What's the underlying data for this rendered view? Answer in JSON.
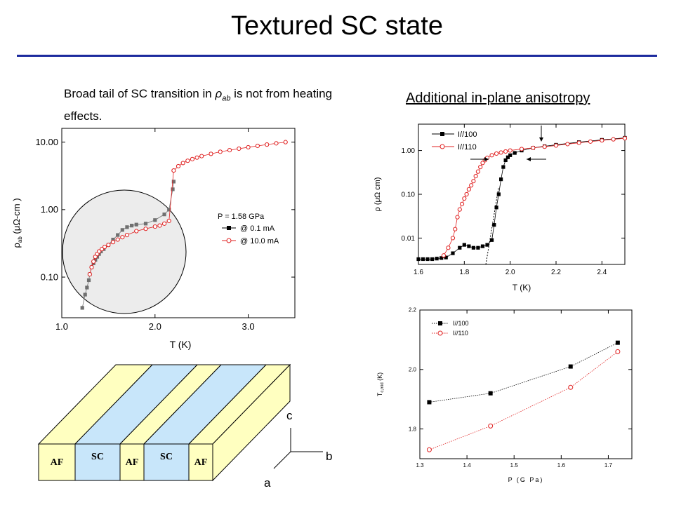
{
  "slide": {
    "title": "Textured SC state",
    "caption_main": "Broad tail of SC transition in ",
    "caption_rho": "ρ",
    "caption_sub": "ab",
    "caption_rest": " is not from heating effects.",
    "subtitle": "Additional in-plane anisotropy"
  },
  "colors": {
    "rule": "#1c2a9e",
    "af": "#ffffc0",
    "sc": "#c8e6fa",
    "red": "#e02020",
    "grey": "#707070"
  },
  "chart_data": [
    {
      "type": "scatter",
      "id": "left",
      "xlabel": "T (K)",
      "ylabel_main": "ρ",
      "ylabel_sub": "ab",
      "ylabel_unit": " (μΩ-cm )",
      "yscale": "log",
      "xlim": [
        1.0,
        3.5
      ],
      "ylim": [
        0.025,
        16
      ],
      "xticks": [
        {
          "v": 1.0,
          "label": "1.0"
        },
        {
          "v": 2.0,
          "label": "2.0"
        },
        {
          "v": 3.0,
          "label": "3.0"
        }
      ],
      "yticks": [
        {
          "v": 0.1,
          "label": "0.10"
        },
        {
          "v": 1,
          "label": "1.00"
        },
        {
          "v": 10,
          "label": "10.00"
        }
      ],
      "legend_title": "P = 1.58 GPa",
      "legend": [
        "@ 0.1 mA",
        "@ 10.0 mA"
      ],
      "series": [
        {
          "name": "@ 0.1 mA",
          "marker": "square",
          "x": [
            1.22,
            1.25,
            1.27,
            1.29,
            1.3,
            1.32,
            1.34,
            1.36,
            1.38,
            1.4,
            1.42,
            1.45,
            1.5,
            1.55,
            1.6,
            1.65,
            1.7,
            1.75,
            1.8,
            1.9,
            2.0,
            2.1,
            2.15,
            2.19,
            2.2
          ],
          "y": [
            0.035,
            0.055,
            0.07,
            0.09,
            0.11,
            0.14,
            0.16,
            0.18,
            0.2,
            0.22,
            0.24,
            0.26,
            0.3,
            0.36,
            0.42,
            0.5,
            0.55,
            0.58,
            0.6,
            0.62,
            0.7,
            0.85,
            1.0,
            2.0,
            2.6
          ]
        },
        {
          "name": "@ 10.0 mA",
          "marker": "circle",
          "x": [
            1.3,
            1.32,
            1.34,
            1.36,
            1.38,
            1.4,
            1.43,
            1.46,
            1.5,
            1.55,
            1.6,
            1.65,
            1.7,
            1.8,
            1.9,
            2.0,
            2.05,
            2.1,
            2.15,
            2.2,
            2.25,
            2.3,
            2.35,
            2.4,
            2.45,
            2.5,
            2.6,
            2.7,
            2.8,
            2.9,
            3.0,
            3.1,
            3.2,
            3.3,
            3.4
          ],
          "y": [
            0.11,
            0.14,
            0.17,
            0.2,
            0.22,
            0.24,
            0.26,
            0.28,
            0.3,
            0.33,
            0.36,
            0.39,
            0.42,
            0.48,
            0.52,
            0.56,
            0.58,
            0.62,
            0.68,
            3.8,
            4.4,
            4.9,
            5.3,
            5.6,
            5.9,
            6.2,
            6.7,
            7.2,
            7.6,
            8.0,
            8.4,
            8.8,
            9.2,
            9.6,
            10.0
          ]
        }
      ]
    },
    {
      "type": "scatter",
      "id": "topright",
      "xlabel": "T (K)",
      "ylabel": "ρ (μΩ cm)",
      "yscale": "log",
      "xlim": [
        1.6,
        2.5
      ],
      "ylim": [
        0.0025,
        4.0
      ],
      "xticks": [
        {
          "v": 1.6,
          "label": "1.6"
        },
        {
          "v": 1.8,
          "label": "1.8"
        },
        {
          "v": 2.0,
          "label": "2.0"
        },
        {
          "v": 2.2,
          "label": "2.2"
        },
        {
          "v": 2.4,
          "label": "2.4"
        }
      ],
      "yticks": [
        {
          "v": 0.01,
          "label": "0.01"
        },
        {
          "v": 0.1,
          "label": "0.10"
        },
        {
          "v": 1,
          "label": "1.00"
        }
      ],
      "legend": [
        "I//100",
        "I//110"
      ],
      "series": [
        {
          "name": "I//100",
          "marker": "square",
          "x": [
            1.6,
            1.62,
            1.64,
            1.66,
            1.68,
            1.7,
            1.72,
            1.75,
            1.78,
            1.8,
            1.82,
            1.84,
            1.86,
            1.88,
            1.9,
            1.92,
            1.93,
            1.94,
            1.95,
            1.96,
            1.97,
            1.98,
            1.99,
            2.0,
            2.02,
            2.05,
            2.1,
            2.15,
            2.2,
            2.3,
            2.4,
            2.5
          ],
          "y": [
            0.0033,
            0.0033,
            0.0033,
            0.0033,
            0.0034,
            0.0035,
            0.0036,
            0.0045,
            0.006,
            0.007,
            0.0065,
            0.006,
            0.006,
            0.0065,
            0.007,
            0.009,
            0.02,
            0.05,
            0.1,
            0.22,
            0.42,
            0.6,
            0.7,
            0.78,
            0.88,
            1.0,
            1.15,
            1.25,
            1.35,
            1.55,
            1.75,
            1.95
          ]
        },
        {
          "name": "I//110",
          "marker": "circle",
          "x": [
            1.71,
            1.73,
            1.75,
            1.76,
            1.77,
            1.78,
            1.79,
            1.8,
            1.81,
            1.82,
            1.83,
            1.84,
            1.85,
            1.86,
            1.87,
            1.88,
            1.89,
            1.9,
            1.92,
            1.94,
            1.96,
            1.98,
            2.0,
            2.05,
            2.1,
            2.15,
            2.2,
            2.25,
            2.3,
            2.35,
            2.4,
            2.45,
            2.5
          ],
          "y": [
            0.004,
            0.006,
            0.01,
            0.016,
            0.03,
            0.045,
            0.06,
            0.08,
            0.1,
            0.13,
            0.16,
            0.2,
            0.26,
            0.33,
            0.42,
            0.52,
            0.6,
            0.68,
            0.78,
            0.85,
            0.9,
            0.95,
            1.0,
            1.08,
            1.15,
            1.22,
            1.3,
            1.4,
            1.5,
            1.6,
            1.7,
            1.8,
            1.9
          ]
        }
      ]
    },
    {
      "type": "line",
      "id": "bottomright",
      "xlabel": "P (G Pa)",
      "ylabel_main": "T",
      "ylabel_sub": "c,mid",
      "ylabel_unit": " (K)",
      "xlim": [
        1.3,
        1.75
      ],
      "ylim": [
        1.7,
        2.2
      ],
      "xticks": [
        {
          "v": 1.3,
          "label": "1.3"
        },
        {
          "v": 1.4,
          "label": "1.4"
        },
        {
          "v": 1.5,
          "label": "1.5"
        },
        {
          "v": 1.6,
          "label": "1.6"
        },
        {
          "v": 1.7,
          "label": "1.7"
        }
      ],
      "yticks": [
        {
          "v": 1.8,
          "label": "1.8"
        },
        {
          "v": 2.0,
          "label": "2.0"
        },
        {
          "v": 2.2,
          "label": "2.2"
        }
      ],
      "legend": [
        "I//100",
        "I//110"
      ],
      "series": [
        {
          "name": "I//100",
          "marker": "square",
          "x": [
            1.32,
            1.45,
            1.62,
            1.72
          ],
          "y": [
            1.89,
            1.92,
            2.01,
            2.09
          ]
        },
        {
          "name": "I//110",
          "marker": "circle",
          "x": [
            1.32,
            1.45,
            1.62,
            1.72
          ],
          "y": [
            1.73,
            1.81,
            1.94,
            2.06
          ]
        }
      ]
    }
  ],
  "diagram": {
    "layers": [
      "AF",
      "SC",
      "AF",
      "SC",
      "AF"
    ],
    "axes": {
      "c": "c",
      "b": "b",
      "a": "a"
    }
  }
}
